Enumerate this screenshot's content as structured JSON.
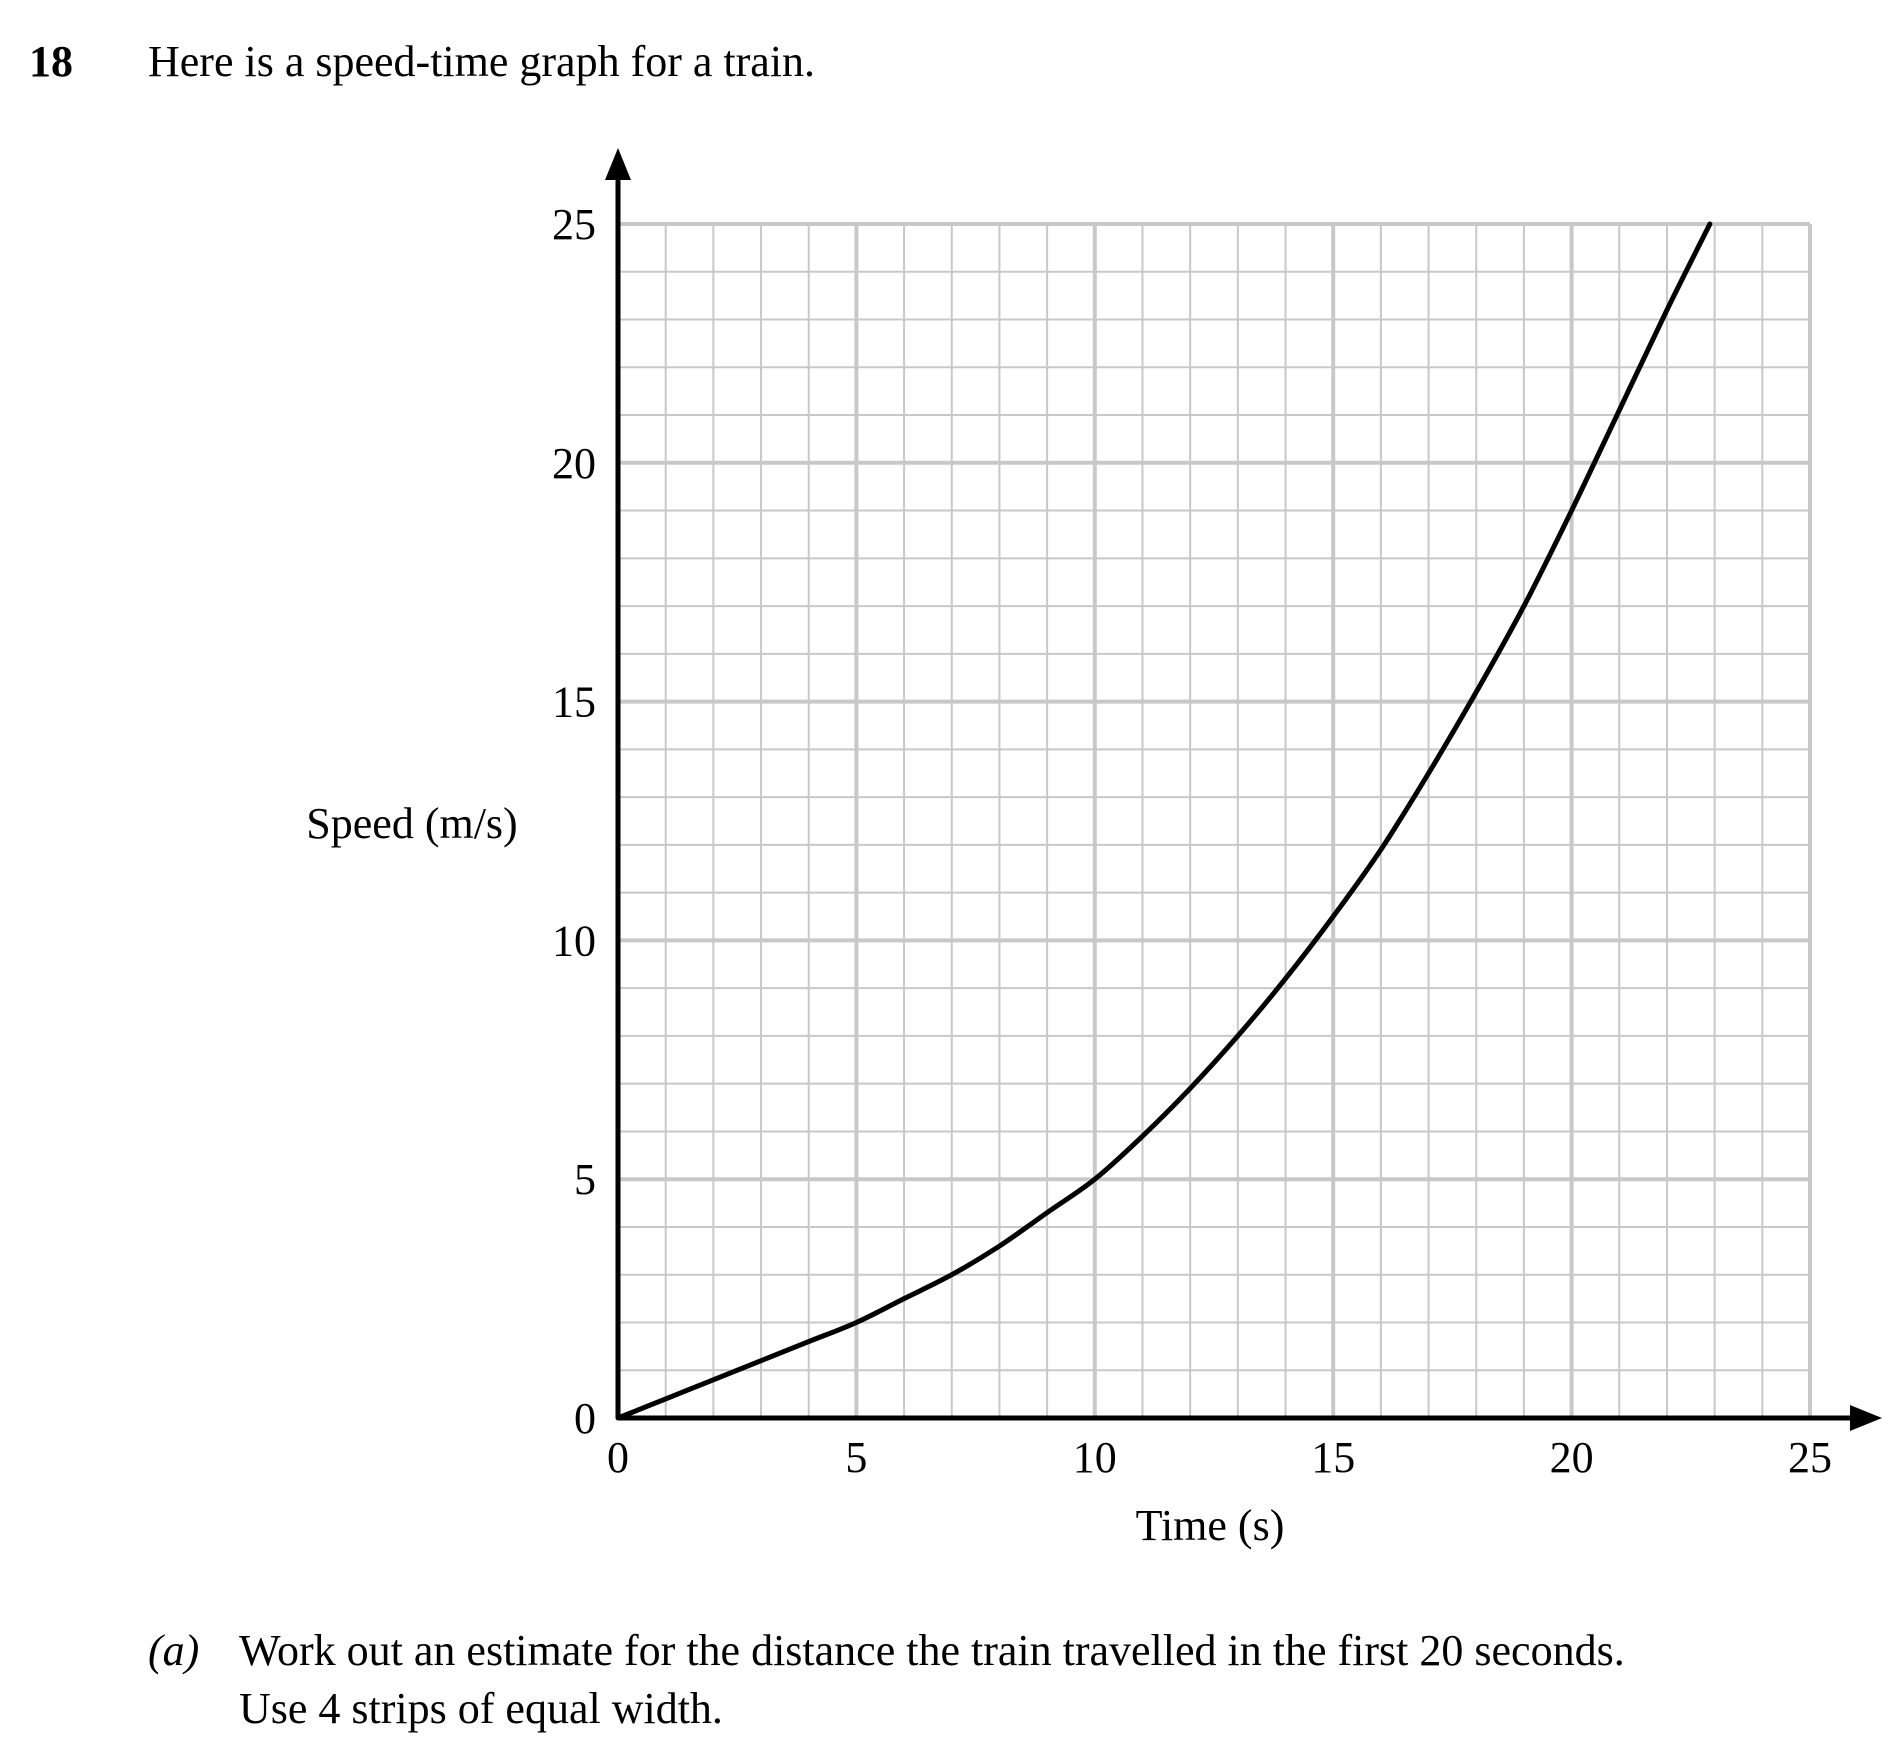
{
  "question": {
    "number": "18",
    "text": "Here is a speed-time graph for a train."
  },
  "chart_data": {
    "type": "line",
    "xlabel": "Time (s)",
    "ylabel": "Speed (m/s)",
    "xlim": [
      0,
      25
    ],
    "ylim": [
      0,
      25
    ],
    "x_ticks": [
      "0",
      "5",
      "10",
      "15",
      "20",
      "25"
    ],
    "y_ticks": [
      "0",
      "5",
      "10",
      "15",
      "20",
      "25"
    ],
    "grid": true,
    "grid_minor_step": 1,
    "grid_major_step": 5,
    "series": [
      {
        "x": [
          0,
          1,
          2,
          3,
          4,
          5,
          6,
          7,
          8,
          9,
          10,
          11,
          12,
          13,
          14,
          15,
          16,
          17,
          18,
          19,
          20,
          21,
          22,
          22.9
        ],
        "y": [
          0,
          0.4,
          0.8,
          1.2,
          1.6,
          2.0,
          2.5,
          3.0,
          3.6,
          4.3,
          5.0,
          5.9,
          6.9,
          8.0,
          9.2,
          10.5,
          11.9,
          13.5,
          15.2,
          17.0,
          19.0,
          21.1,
          23.2,
          25.0
        ]
      }
    ],
    "colors": {
      "grid": "#c8c8c8",
      "axis": "#000000",
      "curve": "#000000"
    }
  },
  "part_a": {
    "label": "(a)",
    "line1": "Work out an estimate for the distance the train travelled in the first 20 seconds.",
    "line2": "Use 4 strips of equal width."
  }
}
